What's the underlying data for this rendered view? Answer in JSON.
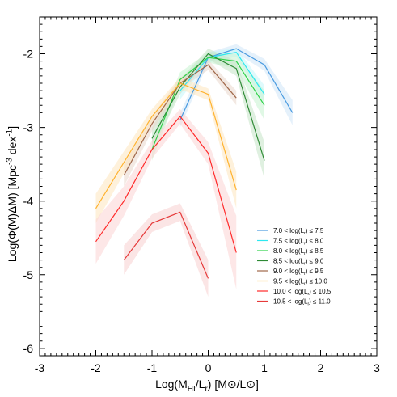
{
  "chart_data": {
    "type": "line",
    "xlabel": "Log(M<sub>HI</sub>/L<sub>r</sub>) [M⊙/L⊙]",
    "ylabel": "Log(Φ(M)ΔM) [Mpc<sup>-3</sup> dex<sup>-1</sup>]",
    "xlim": [
      -3,
      3
    ],
    "ylim": [
      -6.1,
      -1.5
    ],
    "x_ticks": [
      "-3",
      "-2",
      "-1",
      "0",
      "1",
      "2",
      "3"
    ],
    "y_ticks": [
      "-6",
      "-5",
      "-4",
      "-3",
      "-2"
    ],
    "x_tick_values": [
      -3,
      -2,
      -1,
      0,
      1,
      2,
      3
    ],
    "y_tick_values": [
      -6,
      -5,
      -4,
      -3,
      -2
    ],
    "grid": false,
    "legend_position": "lower-right",
    "series": [
      {
        "name": "7.0 < log(L<sub>r</sub>) ≤ 7.5",
        "color": "#4a9be0",
        "band_color": "#cfe5f8",
        "x": [
          -0.5,
          0,
          0.5,
          1,
          1.5
        ],
        "y": [
          -2.9,
          -2.05,
          -1.93,
          -2.15,
          -2.8
        ],
        "err": [
          0.1,
          0.07,
          0.06,
          0.08,
          0.17
        ]
      },
      {
        "name": "7.5 < log(L<sub>r</sub>) ≤ 8.0",
        "color": "#2ee8f0",
        "band_color": "#c4f6fa",
        "x": [
          -0.5,
          0,
          0.5,
          1
        ],
        "y": [
          -2.5,
          -2.05,
          -1.98,
          -2.55
        ],
        "err": [
          0.12,
          0.07,
          0.06,
          0.12
        ]
      },
      {
        "name": "8.0 < log(L<sub>r</sub>) ≤ 8.5",
        "color": "#2fd24a",
        "band_color": "#c6f2cf",
        "x": [
          -1,
          -0.5,
          0,
          0.5,
          1
        ],
        "y": [
          -3.3,
          -2.35,
          -2.05,
          -2.1,
          -2.7
        ],
        "err": [
          0.15,
          0.1,
          0.07,
          0.1,
          0.2
        ]
      },
      {
        "name": "8.5 < log(L<sub>r</sub>) ≤ 9.0",
        "color": "#2e8a35",
        "band_color": "#c4e4c6",
        "x": [
          -1,
          -0.5,
          0,
          0.5,
          1
        ],
        "y": [
          -3.15,
          -2.45,
          -2.0,
          -2.2,
          -3.45
        ],
        "err": [
          0.15,
          0.1,
          0.07,
          0.1,
          0.25
        ]
      },
      {
        "name": "9.0 < log(L<sub>r</sub>) ≤ 9.5",
        "color": "#a0684a",
        "band_color": "#ead7cc",
        "x": [
          -1.5,
          -1,
          -0.5,
          0,
          0.5
        ],
        "y": [
          -3.65,
          -2.95,
          -2.4,
          -2.15,
          -2.6
        ],
        "err": [
          0.15,
          0.1,
          0.08,
          0.07,
          0.1
        ]
      },
      {
        "name": "9.5 < log(L<sub>r</sub>) ≤ 10.0",
        "color": "#ffb22e",
        "band_color": "#fde5bd",
        "x": [
          -2,
          -1,
          -0.5,
          0,
          0.5
        ],
        "y": [
          -4.1,
          -2.85,
          -2.4,
          -2.55,
          -3.85
        ],
        "err": [
          0.2,
          0.1,
          0.08,
          0.08,
          0.25
        ]
      },
      {
        "name": "10.0 < log(L<sub>r</sub>) ≤ 10.5",
        "color": "#ff2a2a",
        "band_color": "#fcd3d3",
        "x": [
          -2,
          -1.5,
          -1,
          -0.5,
          0,
          0.5
        ],
        "y": [
          -4.55,
          -4.0,
          -3.3,
          -2.85,
          -3.35,
          -4.7
        ],
        "err": [
          0.3,
          0.2,
          0.12,
          0.1,
          0.15,
          0.5
        ]
      },
      {
        "name": "10.5 < log(L<sub>r</sub>) ≤ 11.0",
        "color": "#e63a3a",
        "band_color": "#f8d0d0",
        "x": [
          -1.5,
          -1,
          -0.5,
          0
        ],
        "y": [
          -4.8,
          -4.3,
          -4.15,
          -5.05
        ],
        "err": [
          0.2,
          0.12,
          0.12,
          0.25
        ]
      }
    ]
  }
}
